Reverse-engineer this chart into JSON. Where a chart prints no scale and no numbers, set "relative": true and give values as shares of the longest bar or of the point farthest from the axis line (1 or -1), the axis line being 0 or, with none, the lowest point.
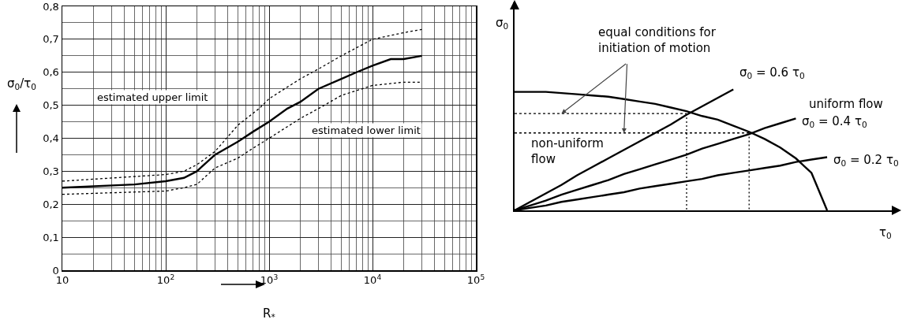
{
  "chart_data": [
    {
      "type": "line",
      "xlabel": "R$_{*}$",
      "ylabel": "σ$_{0}$/τ$_{0}$",
      "log": "x",
      "grid": true,
      "legend": false,
      "marker": "none",
      "xlim": [
        10,
        100000
      ],
      "xticks": [
        10,
        {
          "value": 100,
          "label": "10$^{2}$"
        },
        {
          "value": 1000,
          "label": "10$^{3}$"
        },
        {
          "value": 10000,
          "label": "10$^{4}$"
        },
        {
          "value": 100000,
          "label": "10$^{5}$"
        }
      ],
      "ylim": [
        0,
        0.8
      ],
      "yticks": [
        0,
        {
          "value": 0.1,
          "label": "0,1"
        },
        {
          "value": 0.2,
          "label": "0,2"
        },
        {
          "value": 0.3,
          "label": "0,3"
        },
        {
          "value": 0.4,
          "label": "0,4"
        },
        {
          "value": 0.5,
          "label": "0,5"
        },
        {
          "value": 0.6,
          "label": "0,6"
        },
        {
          "value": 0.7,
          "label": "0,7"
        },
        {
          "value": 0.8,
          "label": "0,8"
        }
      ],
      "series": [
        {
          "color": "#000000",
          "line_style": "solid",
          "x": [
            10,
            50,
            100,
            150,
            200,
            300,
            500,
            700,
            1000,
            1500,
            2000,
            3000,
            5000,
            7000,
            10000,
            15000,
            20000,
            30000
          ],
          "values": [
            0.25,
            0.26,
            0.27,
            0.28,
            0.3,
            0.35,
            0.39,
            0.42,
            0.45,
            0.49,
            0.51,
            0.55,
            0.58,
            0.6,
            0.62,
            0.64,
            0.64,
            0.65
          ]
        },
        {
          "color": "#000000",
          "line_style": "dotted",
          "x": [
            10,
            100,
            150,
            200,
            300,
            500,
            800,
            1000,
            2000,
            3000,
            5000,
            10000,
            20000,
            30000
          ],
          "values": [
            0.27,
            0.29,
            0.3,
            0.32,
            0.36,
            0.44,
            0.49,
            0.52,
            0.58,
            0.61,
            0.65,
            0.7,
            0.72,
            0.73
          ]
        },
        {
          "color": "#000000",
          "line_style": "dotted",
          "x": [
            10,
            100,
            150,
            200,
            300,
            500,
            700,
            1000,
            2000,
            3000,
            5000,
            10000,
            20000,
            30000
          ],
          "values": [
            0.23,
            0.24,
            0.25,
            0.26,
            0.31,
            0.34,
            0.37,
            0.4,
            0.46,
            0.49,
            0.53,
            0.56,
            0.57,
            0.57
          ]
        }
      ],
      "annotations": [
        "estimated upper limit",
        "estimated lower limit"
      ]
    },
    {
      "type": "line",
      "relative": true,
      "xlabel": "τ$_{0}$",
      "ylabel": "σ$_{0}$",
      "grid": false,
      "legend": false,
      "marker": "none",
      "categories": [
        null,
        null,
        null,
        null,
        null,
        null,
        null,
        null,
        null,
        null,
        null,
        null,
        null,
        null,
        null,
        null,
        null,
        null,
        null,
        null,
        null,
        null,
        null,
        null
      ],
      "series": [
        {
          "color": "#000000",
          "line_style": "solid",
          "values": [
            0.98,
            0.98,
            0.98,
            0.97,
            0.96,
            0.95,
            0.94,
            0.92,
            0.9,
            0.88,
            0.85,
            0.82,
            0.78,
            0.75,
            0.7,
            0.65,
            0.59,
            0.52,
            0.43,
            0.31,
            0,
            null,
            null,
            null
          ]
        },
        {
          "name": "σ$_{0}$ = 0.6 τ$_{0}$",
          "color": "#000000",
          "line_style": "solid",
          "values": [
            0,
            0.07,
            0.14,
            0.21,
            0.29,
            0.36,
            0.43,
            0.5,
            0.57,
            0.64,
            0.71,
            0.79,
            0.86,
            0.93,
            1,
            null,
            null,
            null,
            null,
            null,
            null,
            null,
            null,
            null
          ]
        },
        {
          "name": "σ$_{0}$ = 0.4 τ$_{0}$",
          "color": "#000000",
          "line_style": "solid",
          "values": [
            0,
            0.04,
            0.08,
            0.13,
            0.17,
            0.21,
            0.25,
            0.3,
            0.34,
            0.38,
            0.42,
            0.46,
            0.51,
            0.55,
            0.59,
            0.63,
            0.68,
            0.72,
            0.76,
            null,
            null,
            null,
            null,
            null
          ]
        },
        {
          "name": "σ$_{0}$ = 0.2 τ$_{0}$",
          "color": "#000000",
          "line_style": "solid",
          "values": [
            0,
            0.02,
            0.04,
            0.07,
            0.09,
            0.11,
            0.13,
            0.15,
            0.18,
            0.2,
            0.22,
            0.24,
            0.26,
            0.29,
            0.31,
            0.33,
            0.35,
            0.37,
            0.4,
            0.42,
            0.44,
            null,
            null,
            null
          ]
        },
        {
          "color": "#000000",
          "line_style": "dotted",
          "values": [
            0.8,
            0.8,
            0.8,
            0.8,
            0.8,
            0.8,
            0.8,
            0.8,
            0.8,
            0.8,
            0.8,
            0.8,
            null,
            null,
            null,
            null,
            null,
            null,
            null,
            null,
            null,
            null,
            null,
            null
          ]
        },
        {
          "color": "#000000",
          "line_style": "dotted",
          "values": [
            0.64,
            0.64,
            0.64,
            0.64,
            0.64,
            0.64,
            0.64,
            0.64,
            0.64,
            0.64,
            0.64,
            0.64,
            0.64,
            0.64,
            0.64,
            0.64,
            null,
            null,
            null,
            null,
            null,
            null,
            null,
            null
          ]
        }
      ],
      "annotations": [
        "equal conditions for initiation of motion",
        "uniform flow",
        "non-uniform flow"
      ]
    }
  ]
}
